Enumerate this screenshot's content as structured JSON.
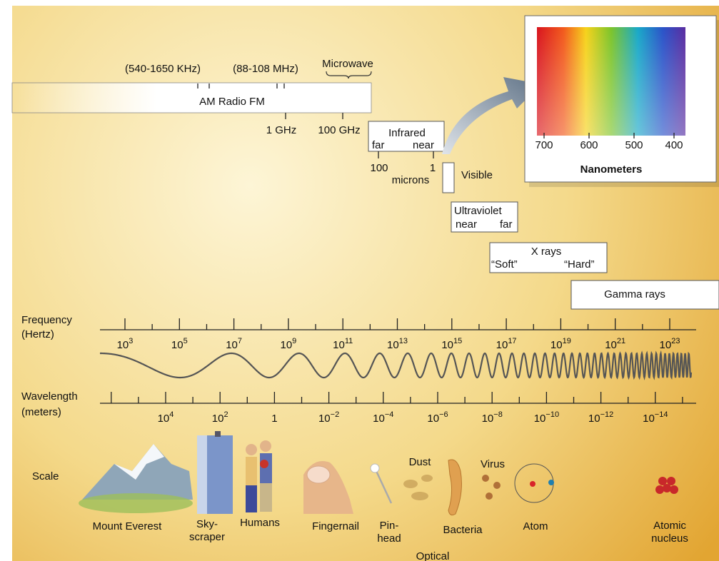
{
  "radio": {
    "am_range": "(540-1650 KHz)",
    "fm_range": "(88-108 MHz)",
    "microwave": "Microwave",
    "label": "AM Radio FM",
    "ghz_1": "1 GHz",
    "ghz_100": "100 GHz"
  },
  "infrared": {
    "title": "Infrared",
    "far": "far",
    "near": "near",
    "tick_left": "100",
    "tick_right": "1",
    "unit": "microns"
  },
  "visible": {
    "label": "Visible"
  },
  "spectrum": {
    "ticks": [
      "700",
      "600",
      "500",
      "400"
    ],
    "unit": "Nanometers"
  },
  "ultraviolet": {
    "title": "Ultraviolet",
    "near": "near",
    "far": "far"
  },
  "xrays": {
    "title": "X rays",
    "soft": "“Soft”",
    "hard": "“Hard”"
  },
  "gamma": {
    "label": "Gamma rays"
  },
  "frequency": {
    "label": [
      "Frequency",
      "(Hertz)"
    ],
    "ticks": [
      {
        "base": "10",
        "exp": "3"
      },
      {
        "base": "10",
        "exp": "5"
      },
      {
        "base": "10",
        "exp": "7"
      },
      {
        "base": "10",
        "exp": "9"
      },
      {
        "base": "10",
        "exp": "11"
      },
      {
        "base": "10",
        "exp": "13"
      },
      {
        "base": "10",
        "exp": "15"
      },
      {
        "base": "10",
        "exp": "17"
      },
      {
        "base": "10",
        "exp": "19"
      },
      {
        "base": "10",
        "exp": "21"
      },
      {
        "base": "10",
        "exp": "23"
      }
    ]
  },
  "wavelength": {
    "label": [
      "Wavelength",
      "(meters)"
    ],
    "ticks": [
      {
        "base": "10",
        "exp": "4"
      },
      {
        "base": "10",
        "exp": "2"
      },
      {
        "base": "1"
      },
      {
        "base": "10",
        "exp": "−2"
      },
      {
        "base": "10",
        "exp": "−4"
      },
      {
        "base": "10",
        "exp": "−6"
      },
      {
        "base": "10",
        "exp": "−8"
      },
      {
        "base": "10",
        "exp": "−10"
      },
      {
        "base": "10",
        "exp": "−12"
      },
      {
        "base": "10",
        "exp": "−14"
      }
    ]
  },
  "scale": {
    "label": "Scale",
    "items": [
      {
        "label": [
          "Mount Everest"
        ]
      },
      {
        "label": [
          "Sky-",
          "scraper"
        ]
      },
      {
        "label": [
          "Humans"
        ]
      },
      {
        "label": [
          "Fingernail"
        ]
      },
      {
        "label": [
          "Pin-",
          "head"
        ]
      },
      {
        "label": [
          "Dust"
        ]
      },
      {
        "label": [
          "Bacteria"
        ]
      },
      {
        "label": [
          "Virus"
        ]
      },
      {
        "label": [
          "Atom"
        ]
      },
      {
        "label": [
          "Atomic",
          "nucleus"
        ]
      },
      {
        "label": [
          "Optical"
        ]
      }
    ]
  }
}
